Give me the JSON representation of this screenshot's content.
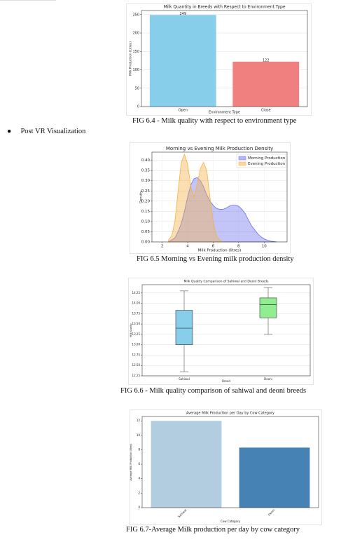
{
  "document": {
    "figure_captions": [
      "FIG 6.4 - Milk quality with respect to environment type",
      "FIG 6.5 Morning vs Evening milk production density",
      "FIG 6.6 - Milk quality comparison of sahiwal and deoni breeds",
      "FIG 6.7-Average Milk production per day by cow category"
    ],
    "bullet": "Post VR Visualization"
  },
  "chart_data": [
    {
      "type": "bar",
      "title": "Milk Quantity in Breeds with Respect to Environment Type",
      "x_label": "Environment Type",
      "y_label": "Milk Production (Litres)",
      "categories": [
        "Open",
        "Close"
      ],
      "values": [
        249,
        122
      ],
      "colors": [
        "#87ceeb",
        "#f08080"
      ],
      "data_labels": true,
      "ylim": [
        0,
        261
      ],
      "yticks": [
        0,
        50,
        100,
        150,
        200,
        250
      ],
      "grid": true
    },
    {
      "type": "density",
      "title": "Morning vs Evening Milk Production Density",
      "x_label": "Milk Production (litres)",
      "y_label": "Density",
      "legend": "upper right",
      "x": [
        2.5,
        2.75,
        3.0,
        3.25,
        3.5,
        3.75,
        4.0,
        4.25,
        4.5,
        4.75,
        5.0,
        5.25,
        5.5,
        5.75,
        6.0,
        6.25,
        6.5,
        6.75,
        7.0,
        7.25,
        7.5,
        7.75,
        8.0,
        8.25,
        8.5,
        8.75,
        9.0,
        9.25,
        9.5,
        9.75,
        10.0,
        10.25,
        10.5,
        10.75,
        11.0
      ],
      "series": [
        {
          "name": "Morning Production",
          "color": "#6a6ff0",
          "values": [
            0.0,
            0.01,
            0.02,
            0.05,
            0.09,
            0.15,
            0.22,
            0.28,
            0.31,
            0.315,
            0.3,
            0.27,
            0.23,
            0.2,
            0.18,
            0.165,
            0.16,
            0.16,
            0.165,
            0.175,
            0.18,
            0.18,
            0.175,
            0.16,
            0.14,
            0.11,
            0.08,
            0.06,
            0.04,
            0.025,
            0.015,
            0.008,
            0.004,
            0.002,
            0.0
          ]
        },
        {
          "name": "Evening Production",
          "color": "#f5b041",
          "values": [
            0.01,
            0.03,
            0.1,
            0.25,
            0.39,
            0.43,
            0.38,
            0.27,
            0.22,
            0.28,
            0.36,
            0.39,
            0.35,
            0.22,
            0.1,
            0.03,
            0.01,
            0.0,
            null,
            null,
            null,
            null,
            null,
            null,
            null,
            null,
            null,
            null,
            null,
            null,
            null,
            null,
            null,
            null,
            null
          ]
        }
      ],
      "xlim": [
        1.2,
        11.8
      ],
      "xticks": [
        2,
        4,
        6,
        8,
        10
      ],
      "ylim": [
        0,
        0.44
      ],
      "yticks": [
        {
          "value": 0,
          "label": "0.00"
        },
        0.05,
        {
          "value": 0.1,
          "label": "0.10"
        },
        0.15,
        {
          "value": 0.2,
          "label": "0.20"
        },
        0.25,
        {
          "value": 0.3,
          "label": "0.30"
        },
        0.35,
        {
          "value": 0.4,
          "label": "0.40"
        }
      ],
      "grid": true
    },
    {
      "type": "box",
      "title": "Milk Quality Comparison of Sahiwal and Deoni Breeds",
      "x_label": "Breed",
      "y_label": "Milk Quality",
      "categories": [
        "Sahiwal",
        "Deoni"
      ],
      "colors": [
        "#87ceeb",
        "#90ee90"
      ],
      "min": [
        12.35,
        13.25
      ],
      "q1": [
        13.0,
        13.65
      ],
      "median": [
        13.4,
        13.97
      ],
      "q3": [
        13.83,
        14.13
      ],
      "max": [
        14.3,
        14.38
      ],
      "ylim": [
        12.25,
        14.45
      ],
      "yticks": [
        12.25,
        {
          "value": 12.5,
          "label": "12.50"
        },
        12.75,
        {
          "value": 13,
          "label": "13.00"
        },
        13.25,
        {
          "value": 13.5,
          "label": "13.50"
        },
        13.75,
        {
          "value": 14,
          "label": "14.00"
        },
        14.25
      ],
      "grid": true
    },
    {
      "type": "bar",
      "title": "Average Milk Production per Day by Cow Category",
      "x_label": "Cow Category",
      "y_label": "Average Milk Production (litres)",
      "categories": [
        "Sahiwal",
        "Deoni"
      ],
      "values": [
        12.0,
        8.3
      ],
      "colors": [
        "#b3cde0",
        "#4682b4"
      ],
      "rotate_x_labels": true,
      "ylim": [
        0,
        12.6
      ],
      "yticks": [
        0,
        2,
        4,
        6,
        8,
        10,
        12
      ],
      "grid": false
    }
  ]
}
